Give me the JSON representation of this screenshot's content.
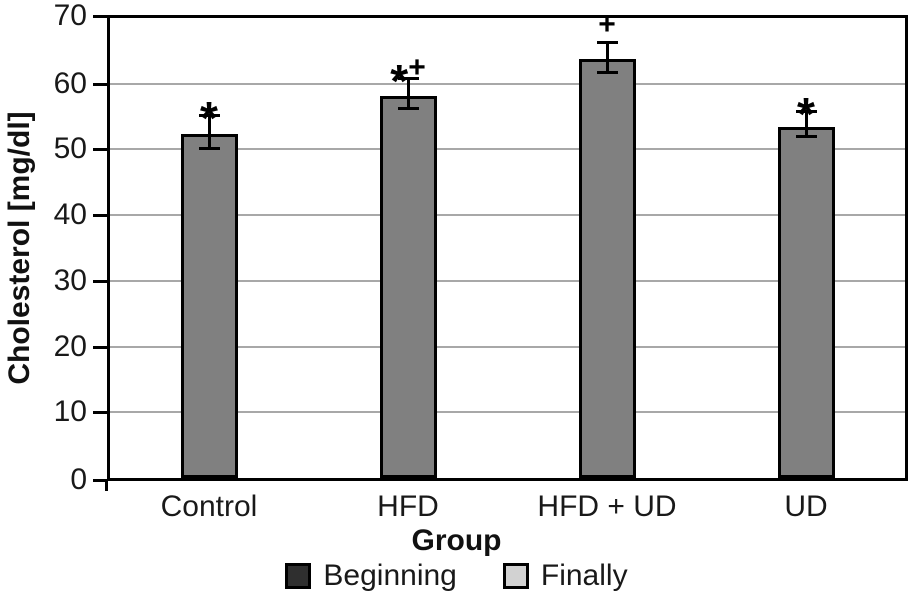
{
  "chart_data": {
    "type": "bar",
    "title": "",
    "xlabel": "Group",
    "ylabel": "Cholesterol [mg/dl]",
    "ylim": [
      0,
      70
    ],
    "yticks": [
      0,
      10,
      20,
      30,
      40,
      50,
      60,
      70
    ],
    "grid": true,
    "gridline_color": "#a8a8a8",
    "categories": [
      "Control",
      "HFD",
      "HFD + UD",
      "UD"
    ],
    "series": [
      {
        "name": "Finally",
        "values": [
          52.3,
          58.2,
          63.7,
          53.4
        ],
        "err_up": [
          3.0,
          2.7,
          2.7,
          2.4
        ],
        "err_down": [
          2.3,
          2.1,
          2.0,
          1.5
        ],
        "annotations": [
          "*",
          "*+",
          "+",
          "*"
        ],
        "bar_color": "#808080",
        "bar_border": "#000000"
      }
    ],
    "legend_position": "bottom",
    "legend": [
      {
        "label": "Beginning",
        "color": "#2f2f2f"
      },
      {
        "label": "Finally",
        "color": "#d2d2d2"
      }
    ]
  }
}
